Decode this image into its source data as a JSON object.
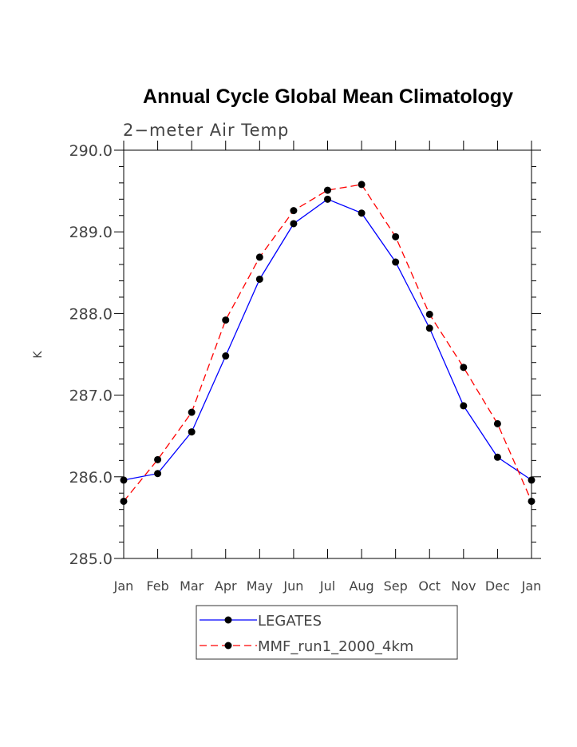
{
  "chart_data": {
    "type": "line",
    "title": "Annual Cycle Global Mean Climatology",
    "subtitle": "2−meter Air Temp",
    "xlabel": "",
    "ylabel": "K",
    "categories": [
      "Jan",
      "Feb",
      "Mar",
      "Apr",
      "May",
      "Jun",
      "Jul",
      "Aug",
      "Sep",
      "Oct",
      "Nov",
      "Dec",
      "Jan"
    ],
    "yticks": [
      "285.0",
      "286.0",
      "287.0",
      "288.0",
      "289.0",
      "290.0"
    ],
    "ylim": [
      285.0,
      290.0
    ],
    "grid": false,
    "legend_position": "bottom",
    "series": [
      {
        "name": "LEGATES",
        "color": "#0000ff",
        "dash": "solid",
        "values": [
          285.96,
          286.04,
          286.55,
          287.48,
          288.42,
          289.1,
          289.4,
          289.23,
          288.63,
          287.82,
          286.87,
          286.24,
          285.96
        ]
      },
      {
        "name": "MMF_run1_2000_4km",
        "color": "#ff0000",
        "dash": "dashed",
        "values": [
          285.7,
          286.21,
          286.79,
          287.92,
          288.69,
          289.26,
          289.51,
          289.58,
          288.94,
          287.99,
          287.34,
          286.65,
          285.7
        ]
      }
    ]
  }
}
